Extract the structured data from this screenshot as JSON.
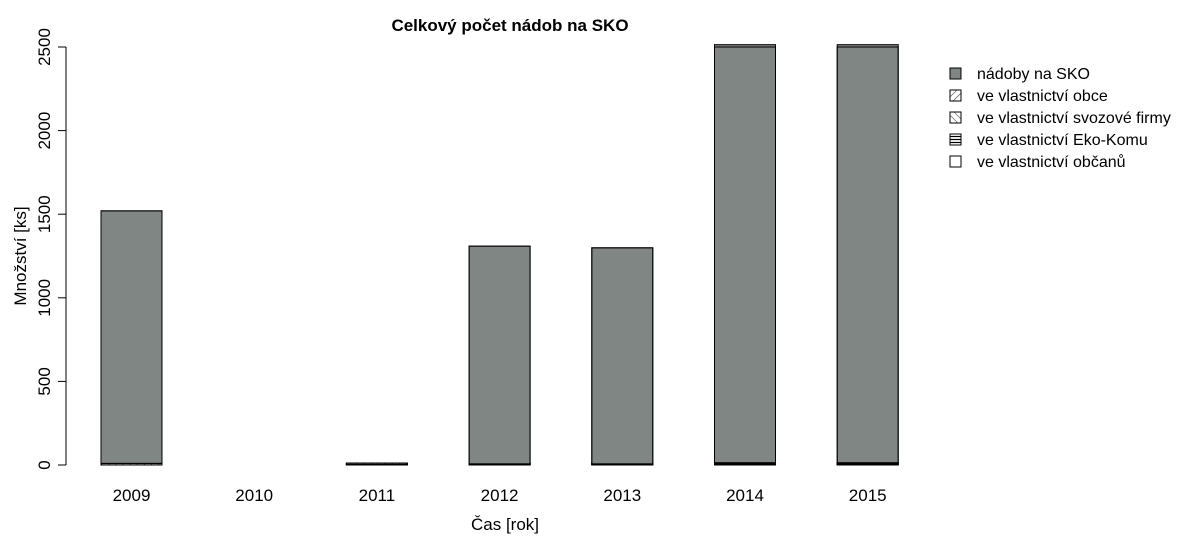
{
  "chart_data": {
    "type": "bar",
    "stacked": true,
    "title": "Celkový počet nádob na SKO",
    "xlabel": "Čas [rok]",
    "ylabel": "Množství [ks]",
    "categories": [
      "2009",
      "2010",
      "2011",
      "2012",
      "2013",
      "2014",
      "2015"
    ],
    "ylim": [
      0,
      2500
    ],
    "yticks": [
      "0",
      "500",
      "1000",
      "1500",
      "2000",
      "2500"
    ],
    "series": [
      {
        "name": "nádoby na SKO",
        "fill": "solid",
        "color": "#808683",
        "values": [
          1510,
          0,
          0,
          1302,
          1292,
          2500,
          2500
        ]
      },
      {
        "name": "ve vlastnictví obce",
        "fill": "hatch-forward",
        "color": "#808683",
        "values": [
          8,
          0,
          2,
          3,
          3,
          3,
          3
        ]
      },
      {
        "name": "ve vlastnictví svozové firmy",
        "fill": "hatch-backward",
        "color": "#808683",
        "values": [
          0,
          0,
          1,
          1,
          1,
          1,
          1
        ]
      },
      {
        "name": "ve vlastnictví Eko-Komu",
        "fill": "hatch-horizontal",
        "color": "#000000",
        "values": [
          2,
          0,
          2,
          3,
          3,
          10,
          10
        ]
      },
      {
        "name": "ve vlastnictví občanů",
        "fill": "empty",
        "color": "#ffffff",
        "values": [
          0,
          0,
          0,
          0,
          0,
          0,
          0
        ]
      }
    ],
    "legend": "right",
    "grid": false
  }
}
